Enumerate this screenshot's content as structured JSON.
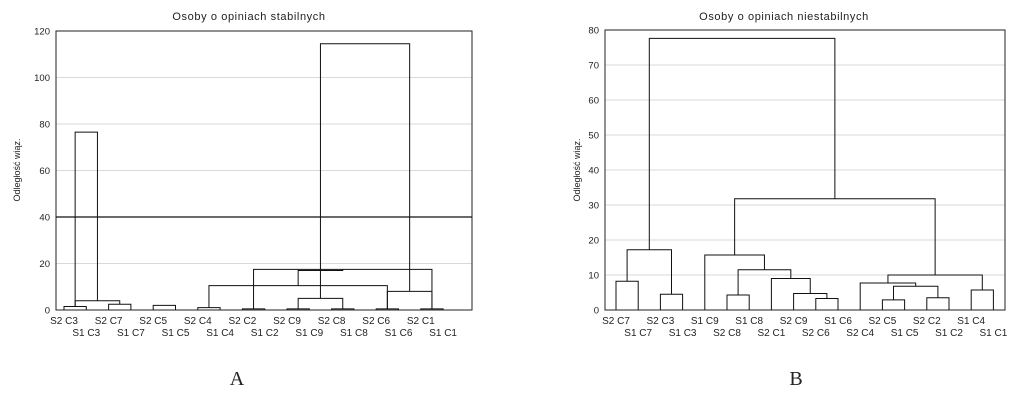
{
  "chart_data": [
    {
      "type": "dendrogram",
      "title": "Osoby o opiniach stabilnych",
      "ylabel": "Odległość wiąz.",
      "ylim": [
        0,
        120
      ],
      "yticks": [
        0,
        20,
        40,
        60,
        80,
        100,
        120
      ],
      "grid": true,
      "cut_line": 40,
      "panel_label": "A",
      "leaves": [
        "S2 C3",
        "S1 C3",
        "S2 C7",
        "S1 C7",
        "S2 C5",
        "S1 C5",
        "S2 C4",
        "S1 C4",
        "S2 C2",
        "S1 C2",
        "S2 C9",
        "S1 C9",
        "S2 C8",
        "S1 C8",
        "S2 C6",
        "S1 C6",
        "S2 C1",
        "S1 C1"
      ],
      "merges": [
        {
          "a": 0,
          "b": 1,
          "h": 1.5
        },
        {
          "a": 2,
          "b": 3,
          "h": 2.5
        },
        {
          "a": 4,
          "b": 5,
          "h": 2
        },
        {
          "a": 6,
          "b": 7,
          "h": 1
        },
        {
          "a": 8,
          "b": 9,
          "h": 0.5
        },
        {
          "a": 10,
          "b": 11,
          "h": 0.5
        },
        {
          "a": 12,
          "b": 13,
          "h": 0.5
        },
        {
          "a": 14,
          "b": 15,
          "h": 0.5
        },
        {
          "a": 16,
          "b": 17,
          "h": 0.5
        },
        {
          "a": 18,
          "b": 19,
          "h": 4
        },
        {
          "a": 25,
          "b": 21,
          "h": 10.5
        },
        {
          "a": 26,
          "b": 22,
          "h": 17.5
        },
        {
          "a": 23,
          "b": 24,
          "h": 5
        },
        {
          "a": 25,
          "b": 26,
          "h": 8
        },
        {
          "a": 28,
          "b": 29,
          "h": 17
        },
        {
          "a": 18,
          "b": 27,
          "h": 76.5
        },
        {
          "a": 31,
          "b": 30,
          "h": 114.5
        }
      ]
    },
    {
      "type": "dendrogram",
      "title": "Osoby o opiniach niestabilnych",
      "ylabel": "Odległość wiąz.",
      "ylim": [
        0,
        80
      ],
      "yticks": [
        0,
        10,
        20,
        30,
        40,
        50,
        60,
        70,
        80
      ],
      "grid": true,
      "panel_label": "B",
      "leaves": [
        "S2 C7",
        "S1 C7",
        "S2 C3",
        "S1 C3",
        "S1 C9",
        "S2 C8",
        "S1 C8",
        "S2 C1",
        "S2 C9",
        "S2 C6",
        "S1 C6",
        "S2 C4",
        "S2 C5",
        "S1 C5",
        "S2 C2",
        "S1 C2",
        "S1 C4",
        "S1 C1"
      ],
      "merges": [
        {
          "a": 0,
          "b": 1,
          "h": 8.2
        },
        {
          "a": 2,
          "b": 3,
          "h": 4.5
        },
        {
          "a": 18,
          "b": 19,
          "h": 17.2
        },
        {
          "a": 5,
          "b": 6,
          "h": 4.3
        },
        {
          "a": 9,
          "b": 10,
          "h": 3.3
        },
        {
          "a": 8,
          "b": 22,
          "h": 4.7
        },
        {
          "a": 7,
          "b": 23,
          "h": 9
        },
        {
          "a": 21,
          "b": 24,
          "h": 11.5
        },
        {
          "a": 4,
          "b": 25,
          "h": 15.7
        },
        {
          "a": 12,
          "b": 13,
          "h": 2.9
        },
        {
          "a": 14,
          "b": 15,
          "h": 3.5
        },
        {
          "a": 27,
          "b": 28,
          "h": 6.8
        },
        {
          "a": 11,
          "b": 29,
          "h": 7.7
        },
        {
          "a": 16,
          "b": 17,
          "h": 5.7
        },
        {
          "a": 30,
          "b": 31,
          "h": 10
        },
        {
          "a": 26,
          "b": 32,
          "h": 31.8
        },
        {
          "a": 20,
          "b": 33,
          "h": 77.6
        }
      ]
    }
  ]
}
